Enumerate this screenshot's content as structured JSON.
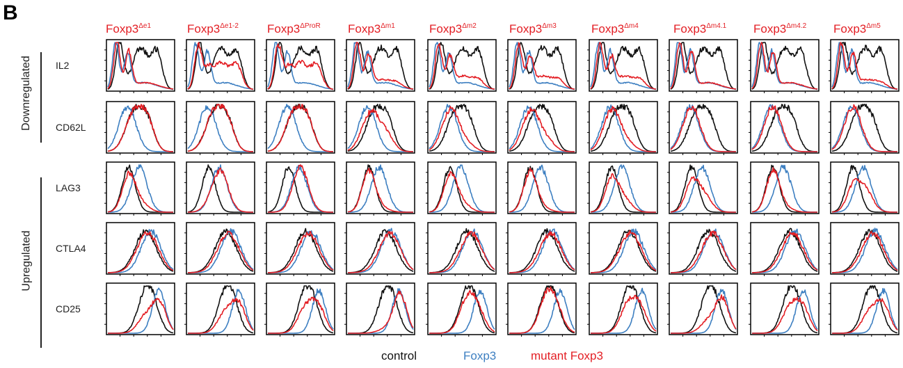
{
  "panel_letter": "B",
  "groups": [
    {
      "label": "Downregulated",
      "markers": [
        "IL2",
        "CD62L"
      ]
    },
    {
      "label": "Upregulated",
      "markers": [
        "LAG3",
        "CTLA4",
        "CD25"
      ]
    }
  ],
  "markers": [
    "IL2",
    "CD62L",
    "LAG3",
    "CTLA4",
    "CD25"
  ],
  "columns": [
    {
      "base": "Foxp3",
      "sup": "Δe1"
    },
    {
      "base": "Foxp3",
      "sup": "Δe1-2"
    },
    {
      "base": "Foxp3",
      "sup": "ΔProR"
    },
    {
      "base": "Foxp3",
      "sup": "Δm1"
    },
    {
      "base": "Foxp3",
      "sup": "Δm2"
    },
    {
      "base": "Foxp3",
      "sup": "Δm3"
    },
    {
      "base": "Foxp3",
      "sup": "Δm4"
    },
    {
      "base": "Foxp3",
      "sup": "Δm4.1"
    },
    {
      "base": "Foxp3",
      "sup": "Δm4.2"
    },
    {
      "base": "Foxp3",
      "sup": "Δm5"
    }
  ],
  "legend": [
    {
      "label": "control",
      "color": "#111111"
    },
    {
      "label": "Foxp3",
      "color": "#3d7fc1"
    },
    {
      "label": "mutant Foxp3",
      "color": "#e31e24"
    }
  ],
  "chart_data": {
    "type": "histogram-grid",
    "rows": [
      "IL2",
      "CD62L",
      "LAG3",
      "CTLA4",
      "CD25"
    ],
    "columns": [
      "Foxp3Δe1",
      "Foxp3Δe1-2",
      "Foxp3ΔProR",
      "Foxp3Δm1",
      "Foxp3Δm2",
      "Foxp3Δm3",
      "Foxp3Δm4",
      "Foxp3Δm4.1",
      "Foxp3Δm4.2",
      "Foxp3Δm5"
    ],
    "series_colors": {
      "control": "#111111",
      "Foxp3": "#3d7fc1",
      "mutant": "#e31e24"
    },
    "x_range": [
      0,
      1
    ],
    "y_range": [
      0,
      1
    ],
    "profiles": {
      "IL2": {
        "control": [
          [
            0.18,
            0.06,
            1.0
          ],
          [
            0.5,
            0.12,
            0.88
          ],
          [
            0.75,
            0.08,
            0.75
          ]
        ],
        "foxp3": [
          [
            0.12,
            0.05,
            1.0
          ],
          [
            0.3,
            0.05,
            0.75
          ],
          [
            0.55,
            0.2,
            0.15
          ]
        ]
      },
      "CD62L": {
        "control": [
          [
            0.42,
            0.14,
            0.88
          ],
          [
            0.62,
            0.1,
            0.45
          ]
        ],
        "foxp3": [
          [
            0.3,
            0.13,
            0.95
          ]
        ]
      },
      "LAG3": {
        "control": [
          [
            0.32,
            0.1,
            0.95
          ]
        ],
        "foxp3": [
          [
            0.48,
            0.12,
            0.95
          ]
        ]
      },
      "CTLA4": {
        "control": [
          [
            0.58,
            0.16,
            0.88
          ]
        ],
        "foxp3": [
          [
            0.66,
            0.15,
            0.88
          ]
        ]
      },
      "CD25": {
        "control": [
          [
            0.58,
            0.12,
            0.88
          ],
          [
            0.72,
            0.1,
            0.3
          ]
        ],
        "foxp3": [
          [
            0.78,
            0.1,
            0.9
          ]
        ]
      }
    },
    "mutant_mix": {
      "IL2": [
        0.0,
        0.6,
        0.6,
        0.1,
        0.2,
        0.2,
        0.2,
        0.0,
        0.0,
        0.1
      ],
      "CD62L": [
        1.0,
        1.0,
        1.0,
        0.5,
        0.2,
        0.3,
        0.2,
        0.0,
        0.0,
        0.0
      ],
      "LAG3": [
        0.8,
        0.1,
        0.0,
        0.9,
        0.8,
        0.9,
        0.7,
        0.6,
        0.9,
        0.5
      ],
      "CTLA4": [
        0.7,
        0.6,
        0.6,
        0.4,
        0.4,
        0.5,
        0.7,
        0.4,
        0.6,
        0.6
      ],
      "CD25": [
        0.4,
        0.5,
        0.6,
        0.1,
        0.8,
        0.9,
        0.7,
        0.3,
        0.6,
        0.5
      ]
    }
  }
}
